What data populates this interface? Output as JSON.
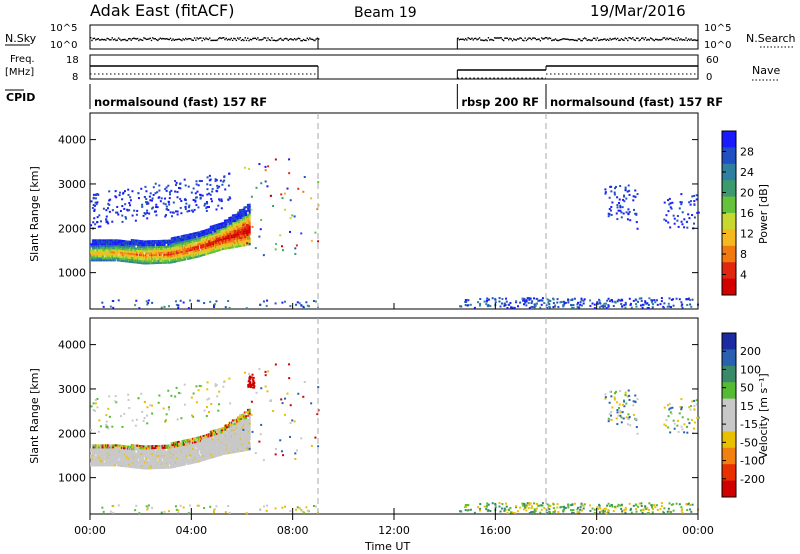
{
  "header": {
    "title": "Adak East (fitACF)",
    "beam": "Beam 19",
    "date": "19/Mar/2016"
  },
  "status_panels": {
    "nsky_label": "N.Sky",
    "nsearch_label": "N.Search",
    "freq_label_1": "Freq.",
    "freq_label_2": "[MHz]",
    "nave_label": "Nave",
    "cpid_label": "CPID",
    "nsky_ticks": [
      "10^5",
      "10^0"
    ],
    "nsearch_ticks": [
      "10^5",
      "10^0"
    ],
    "freq_ticks": [
      "18",
      "8"
    ],
    "nave_ticks": [
      "60",
      "0"
    ],
    "cpid_segments": [
      {
        "label": "normalsound (fast) 157 RF",
        "start_h": 0,
        "end_h": 9.0
      },
      {
        "label": "rbsp 200 RF",
        "start_h": 14.5,
        "end_h": 18.0
      },
      {
        "label": "normalsound (fast) 157 RF",
        "start_h": 18.0,
        "end_h": 24.0
      }
    ]
  },
  "colorbars": {
    "power": {
      "label": "Power [dB]",
      "ticks": [
        "4",
        "8",
        "12",
        "16",
        "20",
        "24",
        "28"
      ],
      "colors": [
        "#1a1aff",
        "#1f4fc0",
        "#2f7fa0",
        "#3d9a6e",
        "#66c23a",
        "#c8d830",
        "#f5b820",
        "#f07a10",
        "#e02810",
        "#d40000"
      ]
    },
    "velocity": {
      "label": "Velocity [m s⁻¹]",
      "ticks": [
        "200",
        "100",
        "50",
        "15",
        "-15",
        "-50",
        "-100",
        "-200"
      ],
      "colors": [
        "#1a2aa0",
        "#2a60b0",
        "#3a8a6a",
        "#55bb33",
        "#c8c8c8",
        "#c8c8c8",
        "#e8c000",
        "#f08010",
        "#e83000",
        "#d00000"
      ]
    }
  },
  "axes": {
    "ylabel": "Slant Range [km]",
    "xlabel": "Time UT",
    "yticks": [
      "1000",
      "2000",
      "3000",
      "4000"
    ],
    "xticks": [
      "00:00",
      "04:00",
      "08:00",
      "12:00",
      "16:00",
      "20:00",
      "00:00"
    ]
  },
  "chart_data": [
    {
      "type": "heatmap",
      "title": "",
      "xlabel": "Time UT",
      "ylabel": "Slant Range [km]",
      "xlim": [
        0,
        24
      ],
      "ylim": [
        180,
        4600
      ],
      "colorbar_label": "Power [dB]",
      "colorbar_range": [
        0,
        30
      ],
      "scatter_bands": [
        {
          "t_start": 0.0,
          "t_end": 6.3,
          "r_low": [
            1300,
            1300,
            1230,
            1250,
            1380,
            1560,
            1660
          ],
          "r_high": [
            1750,
            1760,
            1760,
            1790,
            1930,
            2180,
            2600
          ],
          "value": "high"
        },
        {
          "t_start": 0.0,
          "t_end": 5.5,
          "r_low": [
            2000,
            2200
          ],
          "r_high": [
            2900,
            3400
          ],
          "value": "low"
        },
        {
          "t_start": 20.3,
          "t_end": 24.0,
          "r_low": [
            2000,
            2400
          ],
          "r_high": [
            2600,
            3000
          ],
          "value": "low"
        },
        {
          "t_start": 14.5,
          "t_end": 24.0,
          "r_low": [
            200,
            200
          ],
          "r_high": [
            450,
            450
          ],
          "value": "low"
        }
      ]
    },
    {
      "type": "heatmap",
      "title": "",
      "xlabel": "Time UT",
      "ylabel": "Slant Range [km]",
      "xlim": [
        0,
        24
      ],
      "ylim": [
        180,
        4600
      ],
      "colorbar_label": "Velocity [m s⁻¹]",
      "colorbar_range": [
        -250,
        250
      ],
      "note_values": "Mostly ground scatter (grey) near 1300-2300 km from 00:00 to 06:30 UT; red echoes near 3200 km at 06:20 UT"
    }
  ]
}
